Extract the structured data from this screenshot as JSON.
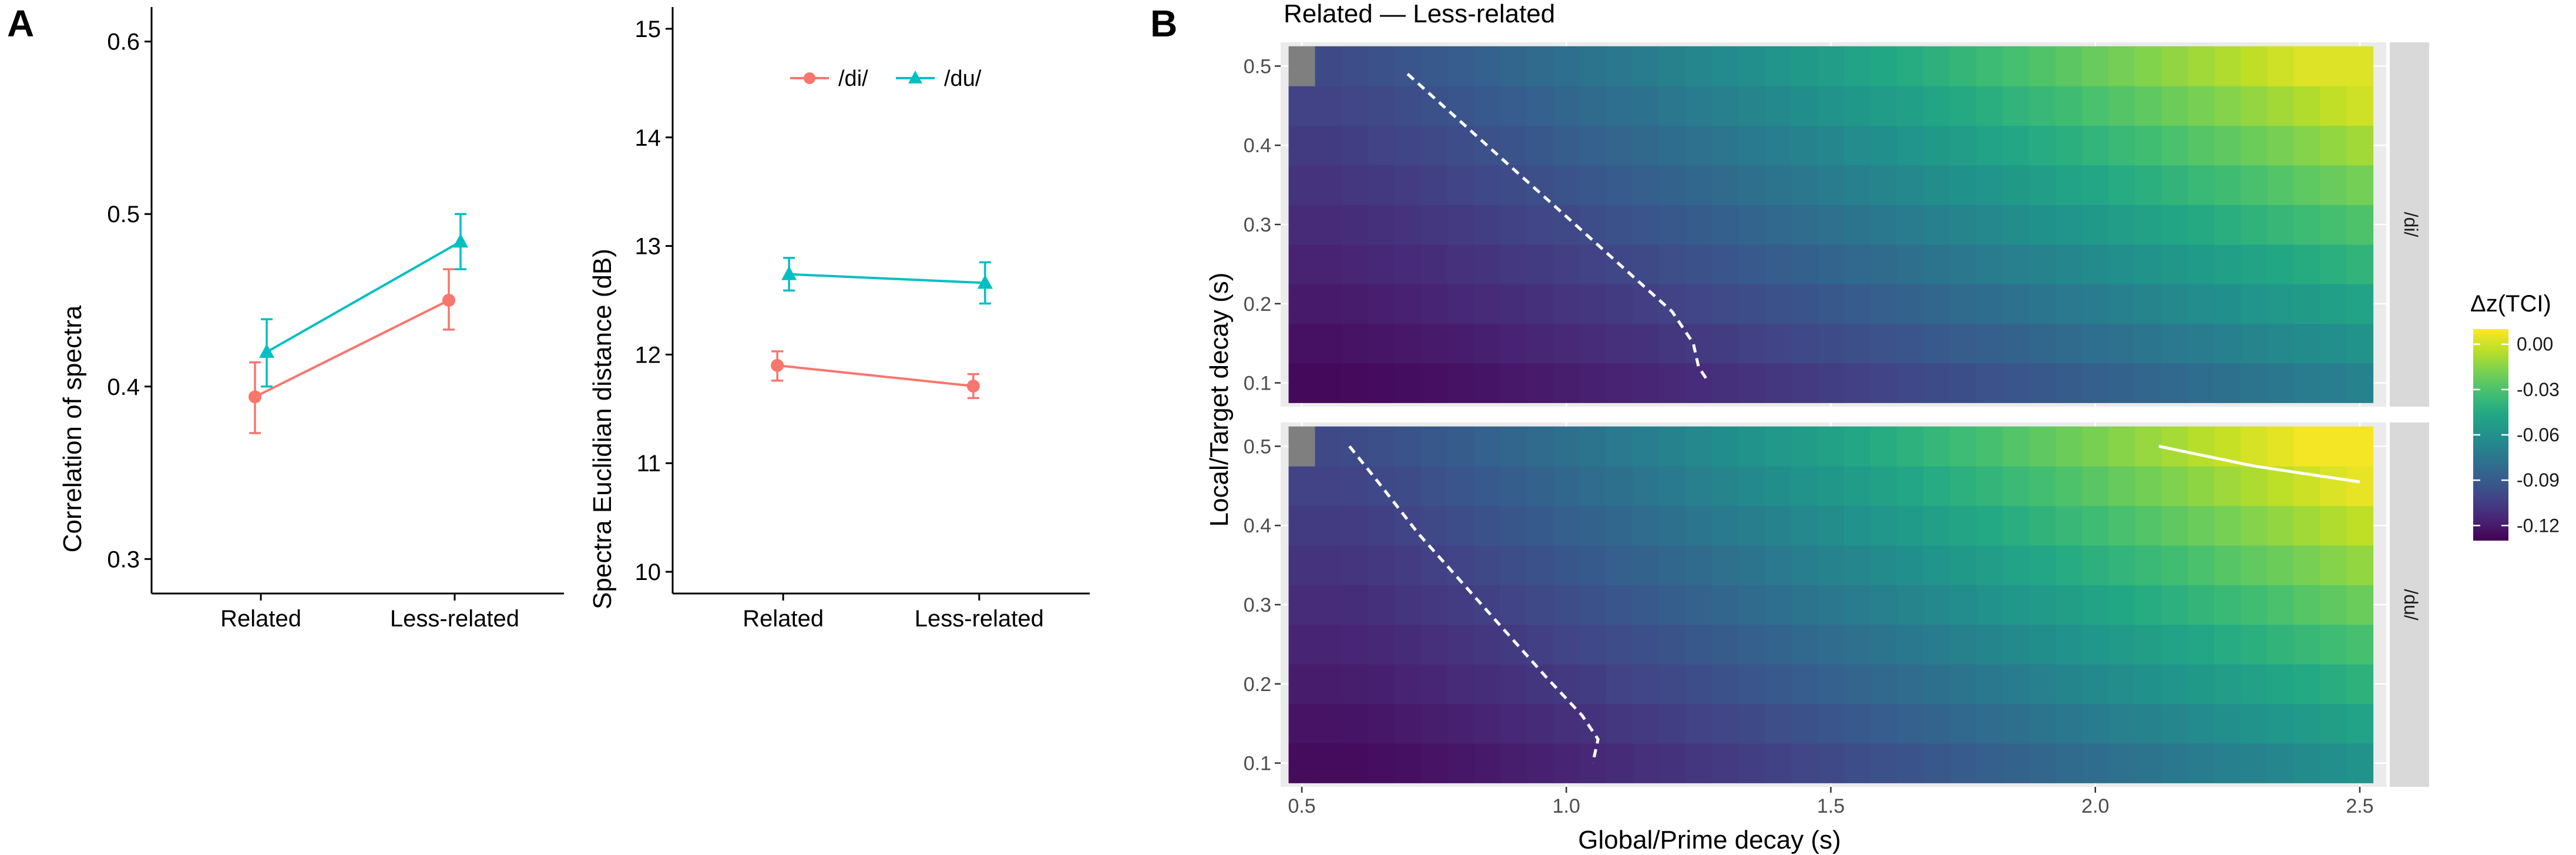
{
  "figure_labels": {
    "panel_a": "A",
    "panel_b": "B"
  },
  "chart_data": [
    {
      "type": "line",
      "id": "A1",
      "title": "",
      "xlabel": "",
      "ylabel": "Correlation of spectra",
      "categories": [
        "Related",
        "Less-related"
      ],
      "ylim": [
        0.28,
        0.62
      ],
      "yticks": [
        0.3,
        0.4,
        0.5,
        0.6
      ],
      "ytick_labels": [
        "0.3",
        "0.4",
        "0.5",
        "0.6"
      ],
      "series": [
        {
          "name": "/di/",
          "color": "#F8766D",
          "marker": "circle",
          "values": [
            0.394,
            0.45
          ],
          "err_low": [
            0.373,
            0.433
          ],
          "err_high": [
            0.414,
            0.468
          ]
        },
        {
          "name": "/du/",
          "color": "#00BFC4",
          "marker": "triangle",
          "values": [
            0.42,
            0.484
          ],
          "err_low": [
            0.4,
            0.468
          ],
          "err_high": [
            0.439,
            0.5
          ]
        }
      ]
    },
    {
      "type": "line",
      "id": "A2",
      "title": "",
      "xlabel": "",
      "ylabel": "Spectra Euclidian distance (dB)",
      "categories": [
        "Related",
        "Less-related"
      ],
      "ylim": [
        9.8,
        15.2
      ],
      "yticks": [
        10,
        11,
        12,
        13,
        14,
        15
      ],
      "ytick_labels": [
        "10",
        "11",
        "12",
        "13",
        "14",
        "15"
      ],
      "legend": {
        "position": "top",
        "labels": [
          "/di/",
          "/du/"
        ]
      },
      "series": [
        {
          "name": "/di/",
          "color": "#F8766D",
          "marker": "circle",
          "values": [
            11.9,
            11.71
          ],
          "err_low": [
            11.76,
            11.6
          ],
          "err_high": [
            12.03,
            11.82
          ]
        },
        {
          "name": "/du/",
          "color": "#00BFC4",
          "marker": "triangle",
          "values": [
            12.74,
            12.66
          ],
          "err_low": [
            12.59,
            12.47
          ],
          "err_high": [
            12.89,
            12.85
          ]
        }
      ]
    },
    {
      "type": "heatmap",
      "id": "B",
      "title": "Related — Less-related",
      "xlabel": "Global/Prime decay (s)",
      "ylabel": "Local/Target decay (s)",
      "xlim": [
        0.46,
        2.55
      ],
      "xticks": [
        0.5,
        1.0,
        1.5,
        2.0,
        2.5
      ],
      "xtick_labels": [
        "0.5",
        "1.0",
        "1.5",
        "2.0",
        "2.5"
      ],
      "ylim": [
        0.07,
        0.53
      ],
      "yticks": [
        0.1,
        0.2,
        0.3,
        0.4,
        0.5
      ],
      "ytick_labels": [
        "0.1",
        "0.2",
        "0.3",
        "0.4",
        "0.5"
      ],
      "x_grid": {
        "start": 0.5,
        "step": 0.05,
        "count": 41
      },
      "y_grid": {
        "start": 0.1,
        "step": 0.05,
        "count": 9
      },
      "colorbar": {
        "title": "Δz(TCI)",
        "palette": "viridis",
        "limits": [
          -0.13,
          0.01
        ],
        "ticks": [
          0.0,
          -0.03,
          -0.06,
          -0.09,
          -0.12
        ],
        "tick_labels": [
          "0.00",
          "-0.03",
          "-0.06",
          "-0.09",
          "-0.12"
        ]
      },
      "facets": [
        {
          "label": "/di/",
          "value_model": {
            "min": -0.127,
            "max": 0.003,
            "x_exp": 1.35,
            "y_weight": 0.55,
            "x_weight": 0.45,
            "x_shift": 0.55,
            "y_shift": 0.1
          },
          "na_cell": [
            0.5,
            0.5
          ],
          "contours": [
            {
              "style": "dashed",
              "points": [
                [
                  0.7,
                  0.49
                ],
                [
                  0.8,
                  0.43
                ],
                [
                  0.9,
                  0.37
                ],
                [
                  1.0,
                  0.31
                ],
                [
                  1.1,
                  0.25
                ],
                [
                  1.2,
                  0.19
                ],
                [
                  1.24,
                  0.15
                ],
                [
                  1.25,
                  0.12
                ],
                [
                  1.27,
                  0.1
                ]
              ]
            }
          ]
        },
        {
          "label": "/du/",
          "value_model": {
            "min": -0.126,
            "max": 0.008,
            "x_exp": 1.25,
            "y_weight": 0.5,
            "x_weight": 0.5,
            "x_shift": 0.58,
            "y_shift": 0.1
          },
          "na_cell": [
            0.5,
            0.5
          ],
          "contours": [
            {
              "style": "dashed",
              "points": [
                [
                  0.59,
                  0.5
                ],
                [
                  0.65,
                  0.45
                ],
                [
                  0.72,
                  0.39
                ],
                [
                  0.8,
                  0.33
                ],
                [
                  0.88,
                  0.27
                ],
                [
                  0.96,
                  0.21
                ],
                [
                  1.03,
                  0.16
                ],
                [
                  1.06,
                  0.13
                ],
                [
                  1.05,
                  0.1
                ]
              ]
            },
            {
              "style": "solid",
              "points": [
                [
                  2.12,
                  0.5
                ],
                [
                  2.3,
                  0.475
                ],
                [
                  2.5,
                  0.455
                ]
              ]
            }
          ]
        }
      ]
    }
  ]
}
